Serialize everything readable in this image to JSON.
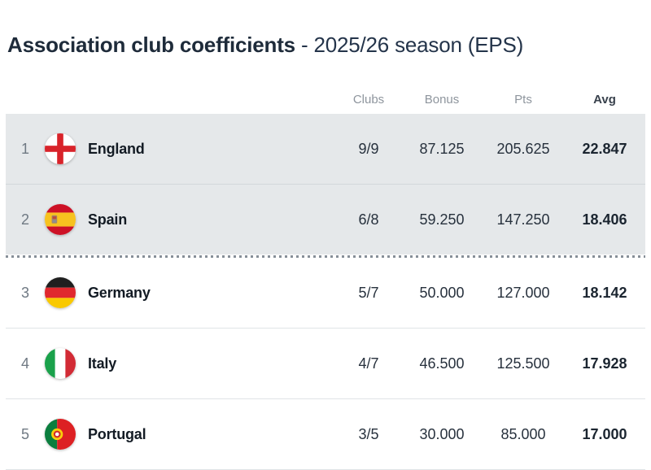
{
  "page": {
    "title_main": "Association club coefficients",
    "title_sub": "- 2025/26 season (EPS)"
  },
  "table": {
    "headers": {
      "clubs": "Clubs",
      "bonus": "Bonus",
      "pts": "Pts",
      "avg": "Avg"
    },
    "rows": [
      {
        "rank": "1",
        "country": "England",
        "flag": "england-flag-icon",
        "clubs": "9/9",
        "bonus": "87.125",
        "pts": "205.625",
        "avg": "22.847",
        "highlight": true,
        "divider_after": false
      },
      {
        "rank": "2",
        "country": "Spain",
        "flag": "spain-flag-icon",
        "clubs": "6/8",
        "bonus": "59.250",
        "pts": "147.250",
        "avg": "18.406",
        "highlight": true,
        "divider_after": true
      },
      {
        "rank": "3",
        "country": "Germany",
        "flag": "germany-flag-icon",
        "clubs": "5/7",
        "bonus": "50.000",
        "pts": "127.000",
        "avg": "18.142",
        "highlight": false,
        "divider_after": false
      },
      {
        "rank": "4",
        "country": "Italy",
        "flag": "italy-flag-icon",
        "clubs": "4/7",
        "bonus": "46.500",
        "pts": "125.500",
        "avg": "17.928",
        "highlight": false,
        "divider_after": false
      },
      {
        "rank": "5",
        "country": "Portugal",
        "flag": "portugal-flag-icon",
        "clubs": "3/5",
        "bonus": "30.000",
        "pts": "85.000",
        "avg": "17.000",
        "highlight": false,
        "divider_after": false
      }
    ]
  },
  "colors": {
    "highlight_row_bg": "#e5e8ea",
    "divider_dots": "#878f98",
    "title_text": "#1e2b3a",
    "header_text": "#8e959d",
    "value_text": "#27313d"
  }
}
